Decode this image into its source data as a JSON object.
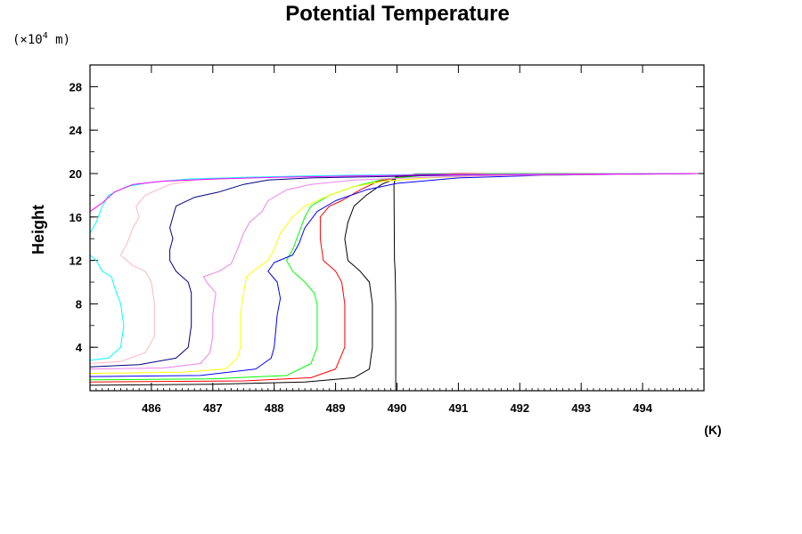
{
  "chart_data": {
    "type": "line",
    "title": "Potential Temperature",
    "ylabel": "Height",
    "y_unit_prefix": "(×10",
    "y_unit_exp": "4",
    "y_unit_suffix": " m)",
    "x_unit": "(K)",
    "xlim": [
      485,
      495
    ],
    "ylim": [
      0,
      30
    ],
    "x_ticks": [
      486,
      487,
      488,
      489,
      490,
      491,
      492,
      493,
      494
    ],
    "y_ticks": [
      4,
      8,
      12,
      16,
      20,
      24,
      28
    ],
    "grid": false,
    "series": [
      {
        "color": "#000000",
        "points": [
          [
            489.98,
            0.0
          ],
          [
            489.98,
            8.0
          ],
          [
            489.97,
            11.0
          ],
          [
            489.96,
            12.0
          ],
          [
            489.95,
            19.0
          ],
          [
            489.98,
            19.7
          ],
          [
            490.3,
            19.95
          ],
          [
            491.5,
            20.0
          ],
          [
            494.9,
            20.0
          ]
        ]
      },
      {
        "color": "#000000",
        "points": [
          [
            485.0,
            0.5
          ],
          [
            487.0,
            0.6
          ],
          [
            488.5,
            0.8
          ],
          [
            489.3,
            1.2
          ],
          [
            489.55,
            2.0
          ],
          [
            489.6,
            4.0
          ],
          [
            489.6,
            8.0
          ],
          [
            489.55,
            10.0
          ],
          [
            489.4,
            11.0
          ],
          [
            489.2,
            12.0
          ],
          [
            489.15,
            14.0
          ],
          [
            489.2,
            15.5
          ],
          [
            489.3,
            17.0
          ],
          [
            489.5,
            18.0
          ],
          [
            489.75,
            19.0
          ],
          [
            490.0,
            19.6
          ],
          [
            490.4,
            19.9
          ],
          [
            491.3,
            20.0
          ],
          [
            494.9,
            20.0
          ]
        ]
      },
      {
        "color": "#ff0000",
        "points": [
          [
            485.0,
            0.8
          ],
          [
            487.5,
            0.9
          ],
          [
            488.6,
            1.2
          ],
          [
            489.0,
            2.0
          ],
          [
            489.15,
            4.0
          ],
          [
            489.15,
            8.0
          ],
          [
            489.1,
            10.0
          ],
          [
            489.0,
            11.0
          ],
          [
            488.8,
            12.0
          ],
          [
            488.75,
            14.0
          ],
          [
            488.75,
            16.0
          ],
          [
            488.9,
            17.0
          ],
          [
            489.1,
            17.5
          ],
          [
            489.4,
            18.5
          ],
          [
            489.7,
            19.3
          ],
          [
            490.2,
            19.8
          ],
          [
            491.0,
            20.0
          ],
          [
            494.9,
            20.0
          ]
        ]
      },
      {
        "color": "#00ff00",
        "points": [
          [
            485.0,
            1.0
          ],
          [
            487.0,
            1.1
          ],
          [
            488.2,
            1.4
          ],
          [
            488.6,
            2.5
          ],
          [
            488.7,
            4.0
          ],
          [
            488.7,
            8.0
          ],
          [
            488.65,
            9.0
          ],
          [
            488.5,
            10.0
          ],
          [
            488.3,
            11.0
          ],
          [
            488.2,
            12.0
          ],
          [
            488.3,
            13.0
          ],
          [
            488.4,
            14.5
          ],
          [
            488.5,
            16.0
          ],
          [
            488.6,
            17.0
          ],
          [
            488.9,
            18.0
          ],
          [
            489.3,
            18.8
          ],
          [
            489.8,
            19.5
          ],
          [
            490.5,
            19.85
          ],
          [
            491.5,
            20.0
          ],
          [
            494.9,
            20.0
          ]
        ]
      },
      {
        "color": "#0000ff",
        "points": [
          [
            485.0,
            1.3
          ],
          [
            486.8,
            1.4
          ],
          [
            487.7,
            2.0
          ],
          [
            487.95,
            3.0
          ],
          [
            488.0,
            4.0
          ],
          [
            488.05,
            7.0
          ],
          [
            488.1,
            8.5
          ],
          [
            488.05,
            10.0
          ],
          [
            487.9,
            11.0
          ],
          [
            488.0,
            11.8
          ],
          [
            488.3,
            12.5
          ],
          [
            488.4,
            13.5
          ],
          [
            488.5,
            15.0
          ],
          [
            488.7,
            16.5
          ],
          [
            489.0,
            17.5
          ],
          [
            489.5,
            18.5
          ],
          [
            490.0,
            19.1
          ],
          [
            491.0,
            19.6
          ],
          [
            492.5,
            19.85
          ],
          [
            494.9,
            20.0
          ]
        ]
      },
      {
        "color": "#ffff00",
        "points": [
          [
            485.0,
            1.6
          ],
          [
            486.5,
            1.7
          ],
          [
            487.2,
            2.0
          ],
          [
            487.4,
            3.0
          ],
          [
            487.45,
            4.0
          ],
          [
            487.45,
            7.0
          ],
          [
            487.5,
            9.0
          ],
          [
            487.55,
            10.5
          ],
          [
            487.7,
            11.2
          ],
          [
            487.9,
            12.0
          ],
          [
            488.0,
            13.0
          ],
          [
            488.1,
            14.5
          ],
          [
            488.3,
            16.0
          ],
          [
            488.5,
            17.0
          ],
          [
            488.9,
            18.0
          ],
          [
            489.3,
            18.8
          ],
          [
            489.8,
            19.3
          ],
          [
            490.5,
            19.6
          ],
          [
            491.5,
            19.8
          ],
          [
            494.9,
            20.0
          ]
        ]
      },
      {
        "color": "#ee82ee",
        "points": [
          [
            485.0,
            2.0
          ],
          [
            486.2,
            2.1
          ],
          [
            486.8,
            2.5
          ],
          [
            486.95,
            3.5
          ],
          [
            487.0,
            5.0
          ],
          [
            487.0,
            7.0
          ],
          [
            487.05,
            9.0
          ],
          [
            486.9,
            10.0
          ],
          [
            486.85,
            10.5
          ],
          [
            487.1,
            11.0
          ],
          [
            487.3,
            11.7
          ],
          [
            487.4,
            13.0
          ],
          [
            487.5,
            14.5
          ],
          [
            487.6,
            15.5
          ],
          [
            487.8,
            16.5
          ],
          [
            487.9,
            17.5
          ],
          [
            488.2,
            18.5
          ],
          [
            488.6,
            19.0
          ],
          [
            489.3,
            19.4
          ],
          [
            490.2,
            19.6
          ],
          [
            491.5,
            19.8
          ],
          [
            494.9,
            20.0
          ]
        ]
      },
      {
        "color": "#000080",
        "points": [
          [
            485.0,
            2.2
          ],
          [
            485.8,
            2.4
          ],
          [
            486.4,
            3.0
          ],
          [
            486.6,
            4.0
          ],
          [
            486.65,
            6.0
          ],
          [
            486.65,
            9.0
          ],
          [
            486.6,
            10.0
          ],
          [
            486.5,
            10.5
          ],
          [
            486.4,
            11.0
          ],
          [
            486.3,
            12.0
          ],
          [
            486.3,
            13.0
          ],
          [
            486.35,
            14.0
          ],
          [
            486.3,
            15.0
          ],
          [
            486.35,
            16.0
          ],
          [
            486.4,
            17.0
          ],
          [
            486.7,
            17.8
          ],
          [
            487.1,
            18.3
          ],
          [
            487.5,
            19.0
          ],
          [
            487.9,
            19.4
          ],
          [
            488.6,
            19.6
          ],
          [
            489.5,
            19.7
          ],
          [
            490.5,
            19.8
          ],
          [
            491.5,
            19.9
          ],
          [
            494.9,
            20.0
          ]
        ]
      },
      {
        "color": "#ffb6c1",
        "points": [
          [
            485.0,
            2.5
          ],
          [
            485.5,
            2.7
          ],
          [
            485.9,
            3.5
          ],
          [
            486.05,
            5.0
          ],
          [
            486.05,
            8.0
          ],
          [
            486.0,
            10.0
          ],
          [
            485.9,
            11.0
          ],
          [
            485.7,
            11.5
          ],
          [
            485.6,
            12.0
          ],
          [
            485.5,
            12.5
          ],
          [
            485.6,
            13.5
          ],
          [
            485.7,
            15.0
          ],
          [
            485.8,
            16.0
          ],
          [
            485.75,
            17.0
          ],
          [
            485.9,
            18.0
          ],
          [
            486.1,
            18.5
          ],
          [
            486.3,
            19.0
          ],
          [
            486.7,
            19.4
          ],
          [
            487.5,
            19.6
          ],
          [
            488.5,
            19.75
          ],
          [
            489.8,
            19.85
          ],
          [
            491.2,
            19.95
          ],
          [
            494.9,
            20.0
          ]
        ]
      },
      {
        "color": "#00ffff",
        "points": [
          [
            485.0,
            2.8
          ],
          [
            485.3,
            3.0
          ],
          [
            485.5,
            4.0
          ],
          [
            485.55,
            6.0
          ],
          [
            485.5,
            8.0
          ],
          [
            485.4,
            9.5
          ],
          [
            485.35,
            10.5
          ],
          [
            485.2,
            11.0
          ],
          [
            485.1,
            12.0
          ],
          [
            485.0,
            12.5
          ],
          [
            485.0,
            14.5
          ],
          [
            485.1,
            15.5
          ],
          [
            485.2,
            17.0
          ],
          [
            485.3,
            18.0
          ],
          [
            485.6,
            18.8
          ],
          [
            486.0,
            19.2
          ],
          [
            486.6,
            19.5
          ],
          [
            487.5,
            19.65
          ],
          [
            488.8,
            19.8
          ],
          [
            490.2,
            19.9
          ],
          [
            494.9,
            20.0
          ]
        ]
      },
      {
        "color": "#ff00ff",
        "points": [
          [
            485.0,
            16.5
          ],
          [
            485.2,
            17.3
          ],
          [
            485.4,
            18.3
          ],
          [
            485.7,
            19.0
          ],
          [
            486.2,
            19.3
          ],
          [
            487.0,
            19.5
          ],
          [
            488.0,
            19.65
          ],
          [
            489.0,
            19.75
          ],
          [
            490.2,
            19.85
          ],
          [
            491.5,
            19.92
          ],
          [
            494.9,
            20.0
          ]
        ]
      }
    ]
  }
}
